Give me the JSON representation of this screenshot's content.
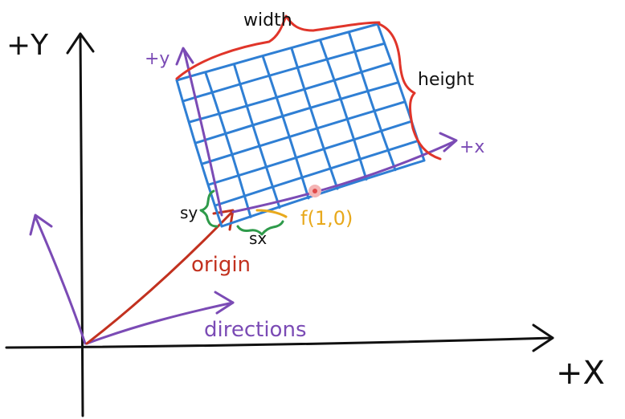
{
  "labels": {
    "world_y_axis": "+Y",
    "world_x_axis": "+X",
    "local_y_axis": "+y",
    "local_x_axis": "+x",
    "width": "width",
    "height": "height",
    "sample_spacing_y": "sy",
    "sample_spacing_x": "sx",
    "sample_point": "f(1,0)",
    "origin": "origin",
    "directions": "directions"
  },
  "colors": {
    "ink": "#111111",
    "grid": "#2f7fd4",
    "local_axes": "#7b4bb5",
    "brace": "#e0352a",
    "origin_vector": "#c2311f",
    "spacing": "#2e9a4a",
    "sample": "#e8a91c",
    "sample_dot": "#e04848",
    "background": "#ffffff"
  }
}
